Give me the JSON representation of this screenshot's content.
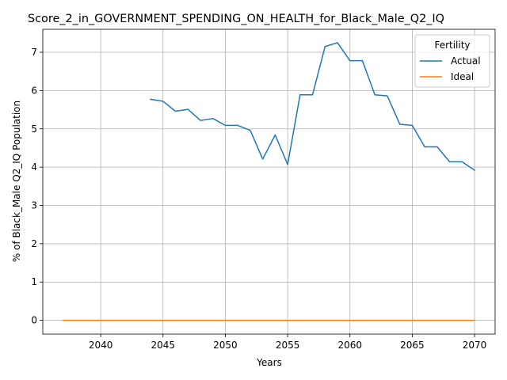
{
  "chart_data": {
    "type": "line",
    "title": "Score_2_in_GOVERNMENT_SPENDING_ON_HEALTH_for_Black_Male_Q2_IQ",
    "xlabel": "Years",
    "ylabel": "% of Black_Male Q2_IQ Population",
    "xlim": [
      2035.35,
      2071.65
    ],
    "ylim": [
      -0.36,
      7.6
    ],
    "xticks": [
      2040,
      2045,
      2050,
      2055,
      2060,
      2065,
      2070
    ],
    "yticks": [
      0,
      1,
      2,
      3,
      4,
      5,
      6,
      7
    ],
    "grid": true,
    "legend": {
      "title": "Fertility",
      "placement": "top-right"
    },
    "series": [
      {
        "name": "Actual",
        "color": "#1f77b4",
        "x": [
          2044,
          2045,
          2046,
          2047,
          2048,
          2049,
          2050,
          2051,
          2052,
          2053,
          2054,
          2055,
          2056,
          2057,
          2058,
          2059,
          2060,
          2061,
          2062,
          2063,
          2064,
          2065,
          2066,
          2067,
          2068,
          2069,
          2070
        ],
        "y": [
          5.77,
          5.72,
          5.46,
          5.51,
          5.22,
          5.27,
          5.09,
          5.09,
          4.96,
          4.21,
          4.84,
          4.07,
          5.89,
          5.89,
          7.15,
          7.25,
          6.78,
          6.78,
          5.89,
          5.86,
          5.12,
          5.09,
          4.53,
          4.53,
          4.14,
          4.14,
          3.92
        ]
      },
      {
        "name": "Ideal",
        "color": "#ff7f0e",
        "x": [
          2037,
          2070
        ],
        "y": [
          0,
          0
        ]
      }
    ]
  }
}
